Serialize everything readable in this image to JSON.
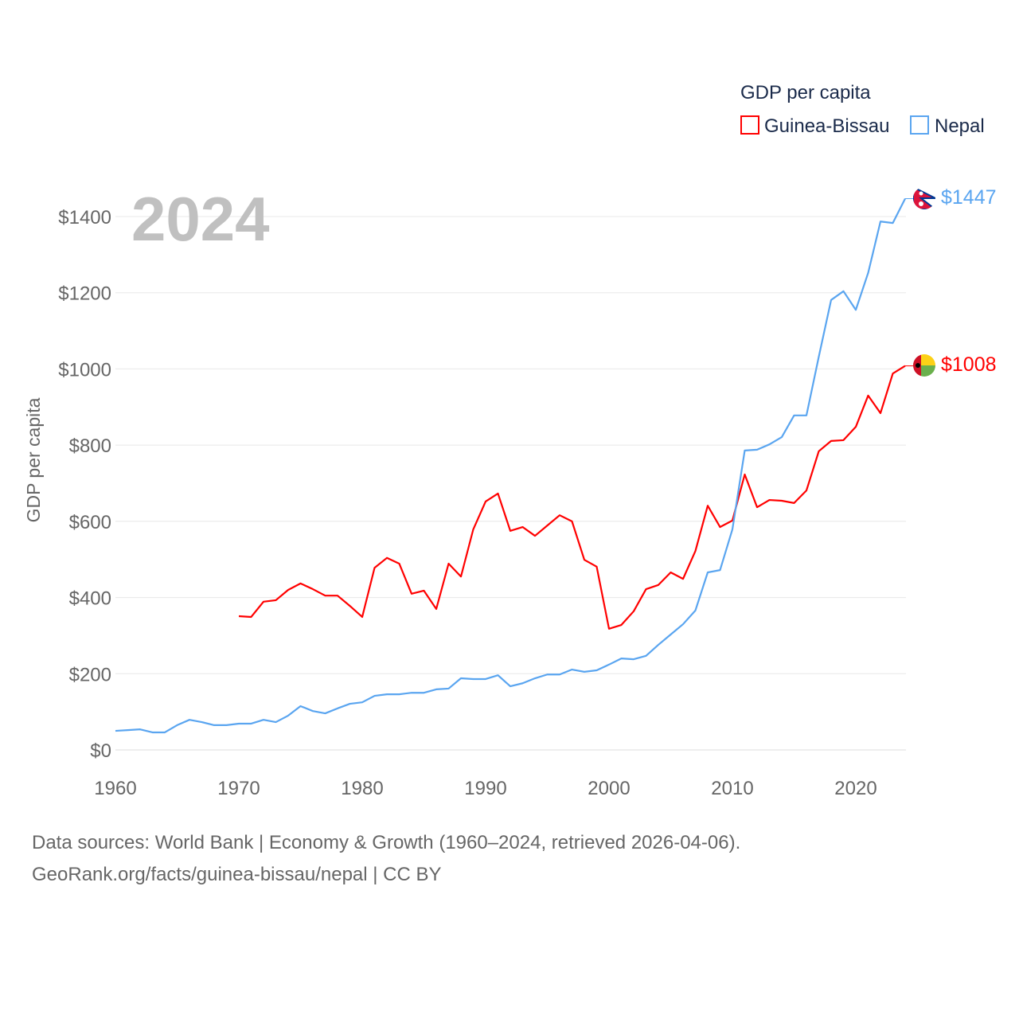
{
  "chart_data": {
    "type": "line",
    "year_label": "2024",
    "ylabel": "GDP per capita",
    "xlabel": "",
    "legend_title": "GDP per capita",
    "legend_position": "top-right",
    "xlim": [
      1960,
      2024
    ],
    "ylim": [
      0,
      1500
    ],
    "x_ticks": [
      "1960",
      "1970",
      "1980",
      "1990",
      "2000",
      "2010",
      "2020"
    ],
    "y_ticks": [
      "$0",
      "$200",
      "$400",
      "$600",
      "$800",
      "$1000",
      "$1200",
      "$1400"
    ],
    "y_tick_values": [
      0,
      200,
      400,
      600,
      800,
      1000,
      1200,
      1400
    ],
    "grid": true,
    "series": [
      {
        "name": "Guinea-Bissau",
        "color": "#ff0000",
        "end_label": "$1008",
        "start_year": 1970,
        "values": [
          351,
          349,
          389,
          393,
          420,
          437,
          422,
          405,
          405,
          378,
          349,
          478,
          504,
          489,
          410,
          418,
          370,
          489,
          455,
          579,
          652,
          673,
          575,
          585,
          562,
          589,
          616,
          600,
          499,
          481,
          318,
          328,
          364,
          422,
          433,
          466,
          449,
          522,
          641,
          585,
          602,
          723,
          637,
          656,
          654,
          648,
          681,
          784,
          811,
          813,
          848,
          930,
          884,
          988,
          1008
        ]
      },
      {
        "name": "Nepal",
        "color": "#5aa5f0",
        "end_label": "$1447",
        "start_year": 1960,
        "values": [
          50,
          52,
          54,
          46,
          46,
          65,
          79,
          73,
          65,
          65,
          69,
          69,
          79,
          73,
          90,
          115,
          102,
          96,
          109,
          121,
          125,
          142,
          146,
          146,
          150,
          150,
          159,
          161,
          188,
          186,
          186,
          196,
          167,
          175,
          188,
          198,
          198,
          211,
          205,
          209,
          224,
          240,
          238,
          247,
          276,
          303,
          330,
          366,
          466,
          472,
          579,
          786,
          788,
          802,
          821,
          878,
          878,
          1032,
          1181,
          1204,
          1155,
          1252,
          1387,
          1383,
          1447
        ]
      }
    ]
  },
  "footer": {
    "line1": "Data sources: World Bank | Economy & Growth (1960–2024, retrieved 2026-04-06).",
    "line2": "GeoRank.org/facts/guinea-bissau/nepal | CC BY"
  }
}
